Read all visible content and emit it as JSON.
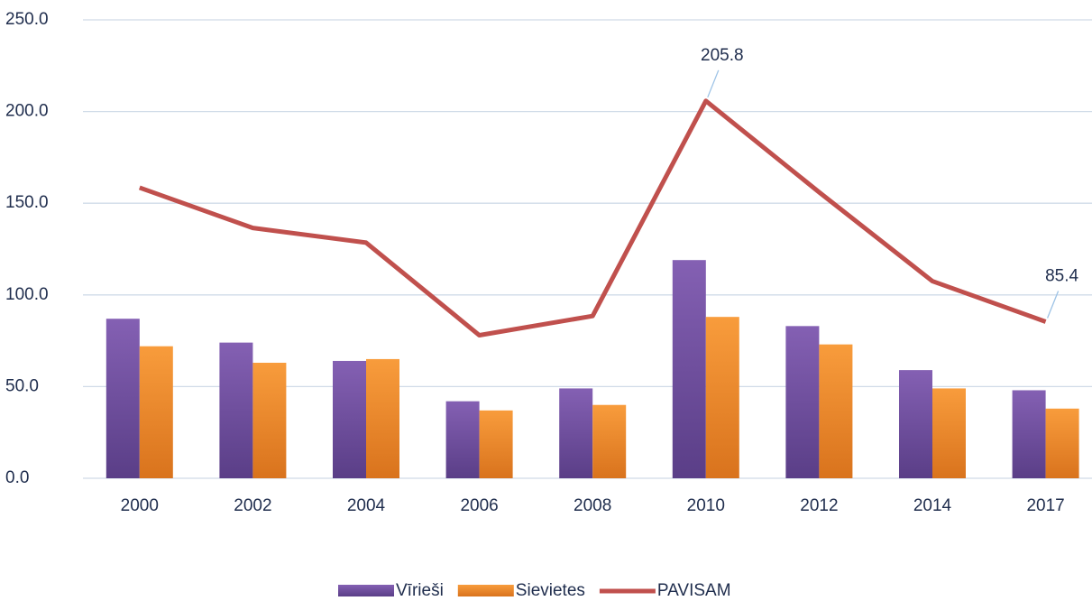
{
  "chart_data": {
    "type": "bar_line",
    "categories": [
      "2000",
      "2002",
      "2004",
      "2006",
      "2008",
      "2010",
      "2012",
      "2014",
      "2017"
    ],
    "series": [
      {
        "name": "Vīrieši",
        "type": "bar",
        "color": "#7d58ab",
        "values": [
          87,
          74,
          64,
          42,
          49,
          119,
          83,
          59,
          48
        ]
      },
      {
        "name": "Sievietes",
        "type": "bar",
        "color": "#f5942f",
        "values": [
          72,
          63,
          65,
          37,
          40,
          88,
          73,
          49,
          38
        ]
      },
      {
        "name": "PAVISAM",
        "type": "line",
        "color": "#c0504d",
        "values": [
          158.5,
          136.5,
          128.5,
          78,
          88.5,
          205.8,
          156,
          107.5,
          85.4
        ],
        "labeled": [
          5,
          8
        ]
      }
    ],
    "ylim": [
      0,
      250
    ],
    "yticks": [
      {
        "value": 0,
        "label": "0.0"
      },
      {
        "value": 50,
        "label": "50.0"
      },
      {
        "value": 100,
        "label": "100.0"
      },
      {
        "value": 150,
        "label": "150.0"
      },
      {
        "value": 200,
        "label": "200.0"
      },
      {
        "value": 250,
        "label": "250.0"
      }
    ],
    "grid": true,
    "legend": "bottom"
  }
}
